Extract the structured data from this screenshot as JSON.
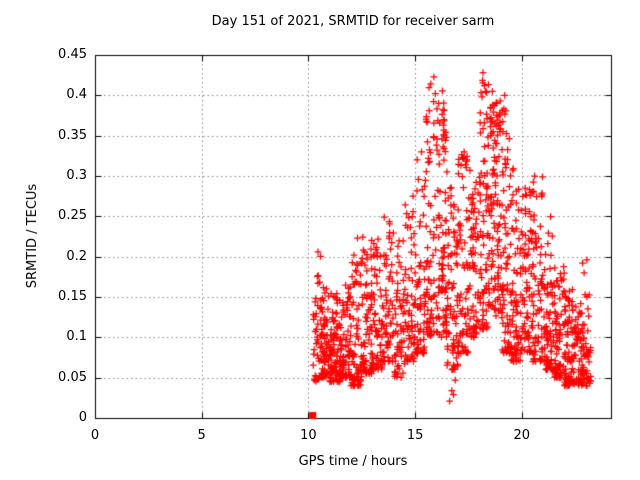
{
  "chart_data": {
    "type": "scatter",
    "title": "Day 151 of 2021, SRMTID for receiver sarm",
    "xlabel": "GPS time / hours",
    "ylabel": "SRMTID / TECUs",
    "xlim": [
      0,
      24.18
    ],
    "ylim": [
      0,
      0.45
    ],
    "x_ticks": [
      {
        "label": "0",
        "value": 0
      },
      {
        "label": "5",
        "value": 5
      },
      {
        "label": "10",
        "value": 10
      },
      {
        "label": "15",
        "value": 15
      },
      {
        "label": "20",
        "value": 20
      }
    ],
    "y_ticks": [
      {
        "label": "0",
        "value": 0
      },
      {
        "label": "0.05",
        "value": 0.05
      },
      {
        "label": "0.1",
        "value": 0.1
      },
      {
        "label": "0.15",
        "value": 0.15
      },
      {
        "label": "0.2",
        "value": 0.2
      },
      {
        "label": "0.25",
        "value": 0.25
      },
      {
        "label": "0.3",
        "value": 0.3
      },
      {
        "label": "0.35",
        "value": 0.35
      },
      {
        "label": "0.4",
        "value": 0.4
      },
      {
        "label": "0.45",
        "value": 0.45
      }
    ],
    "grid": true,
    "legend": "none",
    "colors": {
      "marker": "#ff0000",
      "grid": "#8a8a8a",
      "frame": "#000000",
      "text": "#000000",
      "background": "#ffffff"
    },
    "series": [
      {
        "name": "srmtid-values",
        "marker": "plus",
        "color": "#ff0000",
        "seed": 11,
        "envelope_bins_format": [
          "x_start",
          "x_end",
          "count",
          "y_min",
          "y_max",
          "low_skew"
        ],
        "envelope_bins": [
          [
            10.2,
            10.6,
            40,
            0.045,
            0.205,
            1.6
          ],
          [
            10.6,
            11.0,
            70,
            0.05,
            0.165,
            1.7
          ],
          [
            11.0,
            11.5,
            85,
            0.045,
            0.155,
            1.7
          ],
          [
            11.5,
            12.0,
            80,
            0.05,
            0.165,
            1.7
          ],
          [
            12.0,
            12.5,
            70,
            0.04,
            0.205,
            1.8
          ],
          [
            12.5,
            13.0,
            70,
            0.055,
            0.225,
            1.8
          ],
          [
            13.0,
            13.5,
            60,
            0.06,
            0.23,
            1.8
          ],
          [
            13.5,
            14.0,
            60,
            0.07,
            0.25,
            1.8
          ],
          [
            14.0,
            14.5,
            55,
            0.05,
            0.22,
            1.8
          ],
          [
            14.5,
            15.0,
            60,
            0.07,
            0.275,
            1.9
          ],
          [
            15.0,
            15.5,
            60,
            0.08,
            0.33,
            1.9
          ],
          [
            15.5,
            16.0,
            70,
            0.1,
            0.415,
            1.8
          ],
          [
            16.0,
            16.5,
            90,
            0.1,
            0.41,
            1.5
          ],
          [
            16.5,
            17.0,
            70,
            0.06,
            0.3,
            1.7
          ],
          [
            17.0,
            17.5,
            70,
            0.08,
            0.33,
            1.7
          ],
          [
            17.5,
            18.0,
            70,
            0.1,
            0.31,
            1.5
          ],
          [
            18.0,
            18.5,
            85,
            0.11,
            0.42,
            1.3
          ],
          [
            18.5,
            19.0,
            95,
            0.12,
            0.4,
            1.2
          ],
          [
            19.0,
            19.5,
            80,
            0.08,
            0.385,
            1.5
          ],
          [
            19.5,
            20.0,
            75,
            0.07,
            0.31,
            1.6
          ],
          [
            20.0,
            20.5,
            70,
            0.08,
            0.29,
            1.7
          ],
          [
            20.5,
            21.0,
            70,
            0.07,
            0.3,
            1.8
          ],
          [
            21.0,
            21.5,
            70,
            0.06,
            0.25,
            2.0
          ],
          [
            21.5,
            22.0,
            75,
            0.05,
            0.19,
            1.9
          ],
          [
            22.0,
            22.5,
            85,
            0.04,
            0.16,
            1.7
          ],
          [
            22.5,
            23.25,
            95,
            0.04,
            0.155,
            1.6
          ]
        ],
        "extra_points": [
          [
            10.45,
            0.206
          ],
          [
            12.3,
            0.223
          ],
          [
            14.9,
            0.275
          ],
          [
            15.3,
            0.33
          ],
          [
            15.88,
            0.423
          ],
          [
            15.95,
            0.402
          ],
          [
            16.1,
            0.39
          ],
          [
            16.35,
            0.37
          ],
          [
            16.62,
            0.021
          ],
          [
            16.72,
            0.034
          ],
          [
            16.8,
            0.029
          ],
          [
            16.88,
            0.047
          ],
          [
            17.3,
            0.33
          ],
          [
            18.18,
            0.428
          ],
          [
            18.25,
            0.412
          ],
          [
            18.3,
            0.405
          ],
          [
            18.62,
            0.405
          ],
          [
            18.8,
            0.39
          ],
          [
            19.2,
            0.4
          ],
          [
            20.6,
            0.3
          ],
          [
            22.85,
            0.192
          ],
          [
            22.92,
            0.18
          ],
          [
            23.05,
            0.196
          ]
        ]
      },
      {
        "name": "srmtid-zero-flag",
        "marker": "filled-square",
        "color": "#ff0000",
        "points": [
          [
            10.2,
            0.003
          ]
        ]
      }
    ]
  }
}
